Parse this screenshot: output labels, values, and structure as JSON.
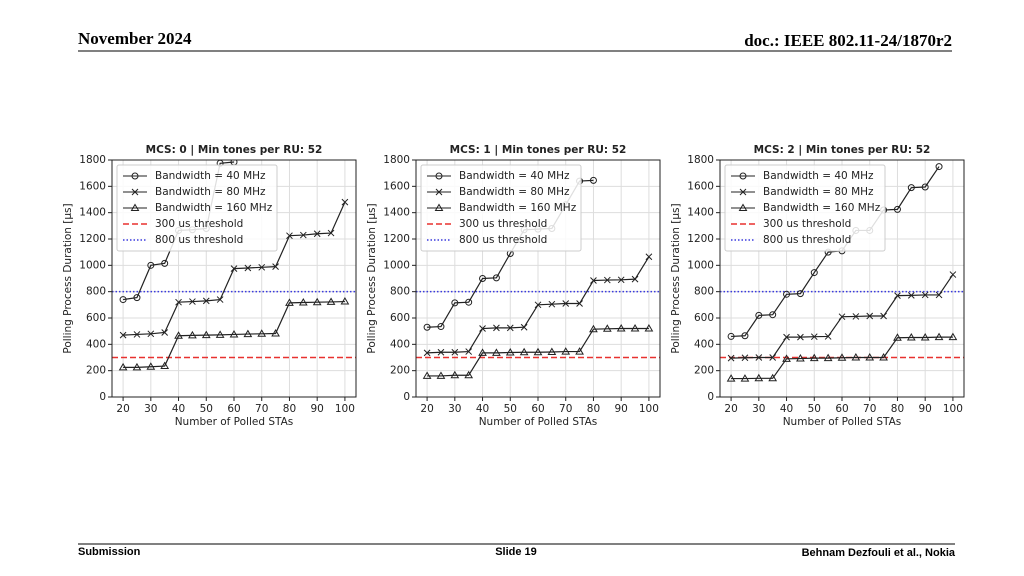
{
  "header": {
    "date": "November 2024",
    "doc": "doc.: IEEE 802.11-24/1870r2"
  },
  "footer": {
    "left": "Submission",
    "center": "Slide 19",
    "right": "Behnam Dezfouli et al., Nokia"
  },
  "chart_data": [
    {
      "type": "line",
      "title": "MCS: 0 | Min tones per RU: 52",
      "xlabel": "Number of Polled STAs",
      "ylabel": "Polling Process Duration [μs]",
      "x": [
        20,
        25,
        30,
        35,
        40,
        45,
        50,
        55,
        60,
        65,
        70,
        75,
        80,
        85,
        90,
        95,
        100
      ],
      "series": [
        {
          "name": "Bandwidth = 40 MHz",
          "color": "#222222",
          "marker": "circle",
          "values": [
            740,
            755,
            1000,
            1015,
            1265,
            1270,
            1280,
            1775,
            1785,
            null,
            null,
            null,
            null,
            null,
            null,
            null,
            null
          ]
        },
        {
          "name": "Bandwidth = 80 MHz",
          "color": "#222222",
          "marker": "x",
          "values": [
            470,
            475,
            480,
            490,
            720,
            725,
            730,
            740,
            975,
            980,
            985,
            990,
            1225,
            1230,
            1240,
            1245,
            1480
          ]
        },
        {
          "name": "Bandwidth = 160 MHz",
          "color": "#222222",
          "marker": "triangle",
          "values": [
            225,
            225,
            230,
            235,
            465,
            468,
            470,
            472,
            475,
            478,
            480,
            482,
            715,
            718,
            720,
            722,
            725
          ]
        }
      ],
      "thresholds": [
        {
          "name": "300 us threshold",
          "color": "#e8312f",
          "style": "dashed",
          "value": 300
        },
        {
          "name": "800 us threshold",
          "color": "#3a3adf",
          "style": "dotted",
          "value": 800
        }
      ],
      "xlim": [
        16,
        104
      ],
      "ylim": [
        0,
        1800
      ],
      "xticks": [
        20,
        30,
        40,
        50,
        60,
        70,
        80,
        90,
        100
      ],
      "yticks": [
        0,
        200,
        400,
        600,
        800,
        1000,
        1200,
        1400,
        1600,
        1800
      ],
      "grid": true,
      "legend": "upper left"
    },
    {
      "type": "line",
      "title": "MCS: 1 | Min tones per RU: 52",
      "xlabel": "Number of Polled STAs",
      "ylabel": "Polling Process Duration [μs]",
      "x": [
        20,
        25,
        30,
        35,
        40,
        45,
        50,
        55,
        60,
        65,
        70,
        75,
        80,
        85,
        90,
        95,
        100
      ],
      "series": [
        {
          "name": "Bandwidth = 40 MHz",
          "color": "#222222",
          "marker": "circle",
          "values": [
            530,
            535,
            715,
            720,
            900,
            905,
            1090,
            1270,
            1275,
            1280,
            1460,
            1640,
            1645,
            null,
            null,
            null,
            null
          ]
        },
        {
          "name": "Bandwidth = 80 MHz",
          "color": "#222222",
          "marker": "x",
          "values": [
            335,
            340,
            340,
            345,
            520,
            525,
            525,
            530,
            700,
            705,
            710,
            710,
            885,
            888,
            890,
            895,
            1065
          ]
        },
        {
          "name": "Bandwidth = 160 MHz",
          "color": "#222222",
          "marker": "triangle",
          "values": [
            160,
            160,
            165,
            165,
            335,
            335,
            338,
            340,
            340,
            342,
            345,
            345,
            515,
            518,
            520,
            520,
            520
          ]
        }
      ],
      "thresholds": [
        {
          "name": "300 us threshold",
          "color": "#e8312f",
          "style": "dashed",
          "value": 300
        },
        {
          "name": "800 us threshold",
          "color": "#3a3adf",
          "style": "dotted",
          "value": 800
        }
      ],
      "xlim": [
        16,
        104
      ],
      "ylim": [
        0,
        1800
      ],
      "xticks": [
        20,
        30,
        40,
        50,
        60,
        70,
        80,
        90,
        100
      ],
      "yticks": [
        0,
        200,
        400,
        600,
        800,
        1000,
        1200,
        1400,
        1600,
        1800
      ],
      "grid": true,
      "legend": "upper left"
    },
    {
      "type": "line",
      "title": "MCS: 2 | Min tones per RU: 52",
      "xlabel": "Number of Polled STAs",
      "ylabel": "Polling Process Duration [μs]",
      "x": [
        20,
        25,
        30,
        35,
        40,
        45,
        50,
        55,
        60,
        65,
        70,
        75,
        80,
        85,
        90,
        95,
        100
      ],
      "series": [
        {
          "name": "Bandwidth = 40 MHz",
          "color": "#222222",
          "marker": "circle",
          "values": [
            460,
            465,
            620,
            625,
            780,
            785,
            945,
            1100,
            1110,
            1265,
            1265,
            1420,
            1425,
            1590,
            1595,
            1750,
            null
          ]
        },
        {
          "name": "Bandwidth = 80 MHz",
          "color": "#222222",
          "marker": "x",
          "values": [
            295,
            298,
            300,
            300,
            455,
            455,
            458,
            460,
            610,
            612,
            615,
            615,
            770,
            772,
            775,
            775,
            930
          ]
        },
        {
          "name": "Bandwidth = 160 MHz",
          "color": "#222222",
          "marker": "triangle",
          "values": [
            140,
            140,
            142,
            142,
            290,
            292,
            295,
            295,
            298,
            300,
            300,
            300,
            450,
            452,
            452,
            455,
            455
          ]
        }
      ],
      "thresholds": [
        {
          "name": "300 us threshold",
          "color": "#e8312f",
          "style": "dashed",
          "value": 300
        },
        {
          "name": "800 us threshold",
          "color": "#3a3adf",
          "style": "dotted",
          "value": 800
        }
      ],
      "xlim": [
        16,
        104
      ],
      "ylim": [
        0,
        1800
      ],
      "xticks": [
        20,
        30,
        40,
        50,
        60,
        70,
        80,
        90,
        100
      ],
      "yticks": [
        0,
        200,
        400,
        600,
        800,
        1000,
        1200,
        1400,
        1600,
        1800
      ],
      "grid": true,
      "legend": "upper left"
    }
  ]
}
